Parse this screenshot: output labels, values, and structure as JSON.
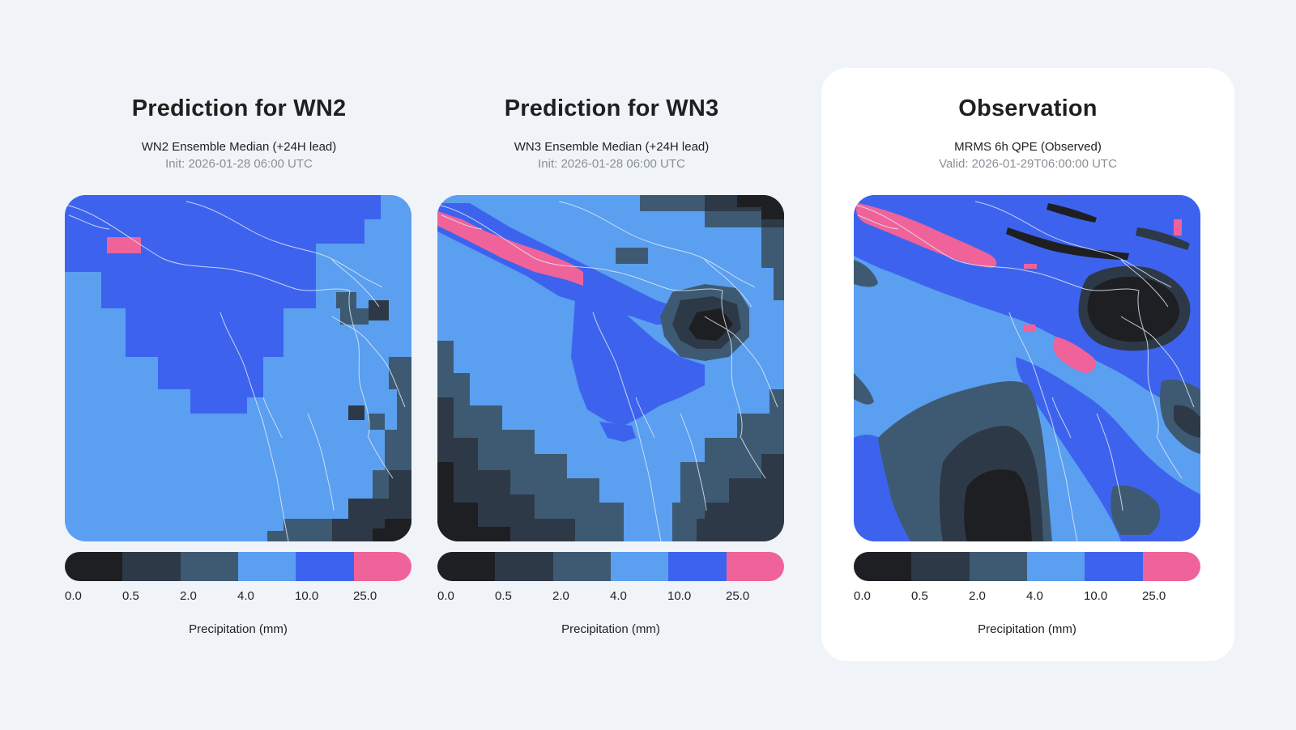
{
  "legend": {
    "colors": [
      "#1e1f22",
      "#2e3947",
      "#3e5a72",
      "#5a9ff0",
      "#3d63ee",
      "#f0629a"
    ],
    "ticks": [
      "0.0",
      "0.5",
      "2.0",
      "4.0",
      "10.0",
      "25.0"
    ],
    "label": "Precipitation (mm)"
  },
  "panels": [
    {
      "title": "Prediction for WN2",
      "subtitle": "WN2 Ensemble Median (+24H lead)",
      "subtitle2": "Init: 2026-01-28 06:00 UTC"
    },
    {
      "title": "Prediction for WN3",
      "subtitle": "WN3 Ensemble Median (+24H lead)",
      "subtitle2": "Init: 2026-01-28 06:00 UTC"
    },
    {
      "title": "Observation",
      "subtitle": "MRMS 6h QPE (Observed)",
      "subtitle2": "Valid: 2026-01-29T06:00:00 UTC"
    }
  ]
}
